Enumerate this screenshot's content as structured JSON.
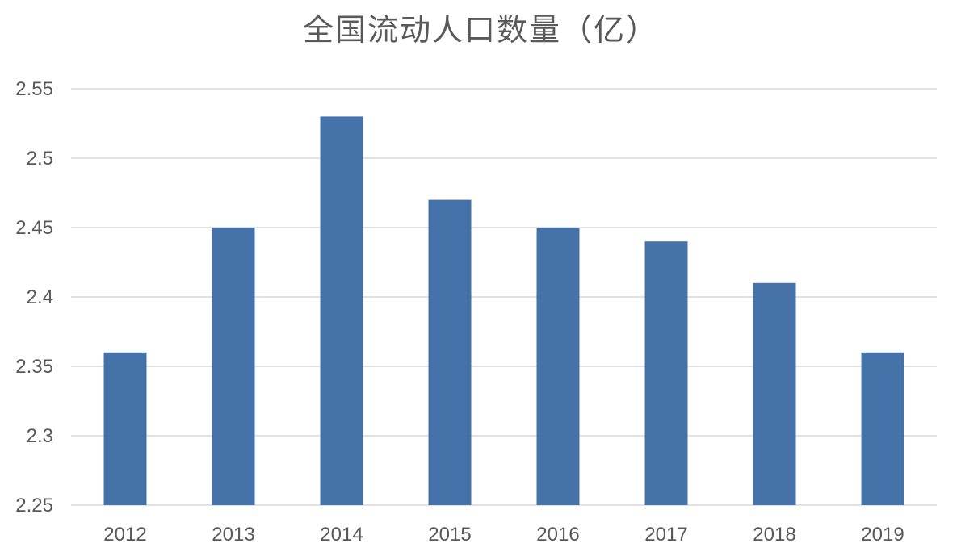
{
  "chart_data": {
    "type": "bar",
    "title": "全国流动人口数量（亿）",
    "categories": [
      "2012",
      "2013",
      "2014",
      "2015",
      "2016",
      "2017",
      "2018",
      "2019"
    ],
    "values": [
      2.36,
      2.45,
      2.53,
      2.47,
      2.45,
      2.44,
      2.41,
      2.36
    ],
    "ylim": [
      2.25,
      2.55
    ],
    "yticks": [
      "2.25",
      "2.3",
      "2.35",
      "2.4",
      "2.45",
      "2.5",
      "2.55"
    ],
    "grid": true,
    "bar_color": "#4472a9",
    "xlabel": "",
    "ylabel": ""
  }
}
